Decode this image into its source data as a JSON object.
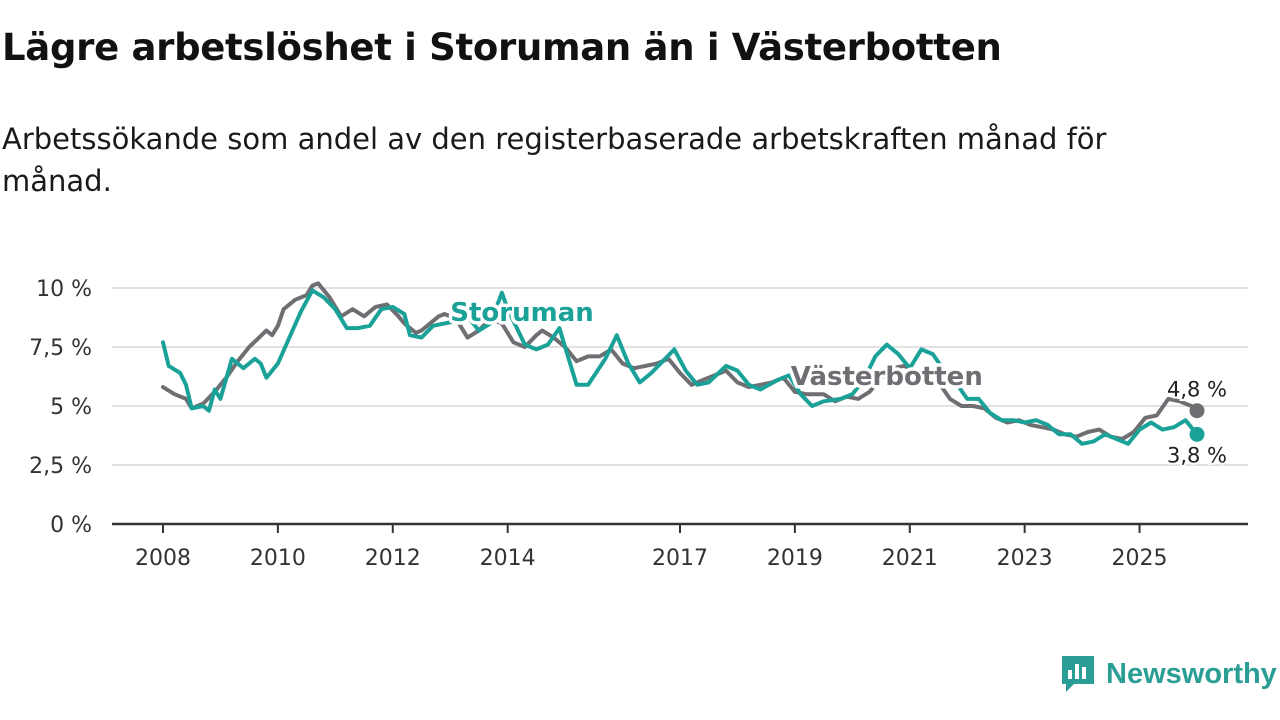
{
  "header": {
    "title": "Lägre arbetslöshet i Storuman än i Västerbotten",
    "subtitle": "Arbetssökande som andel av den registerbaserade arbetskraften månad för månad."
  },
  "brand": {
    "name": "Newsworthy",
    "icon": "newsworthy-logo-icon",
    "color": "#2a9d94"
  },
  "chart_data": {
    "type": "line",
    "title": "Lägre arbetslöshet i Storuman än i Västerbotten",
    "xlabel": "",
    "ylabel": "",
    "xlim": [
      2008.0,
      2026.3
    ],
    "ylim": [
      0,
      10
    ],
    "grid": true,
    "y_ticks": [
      0,
      2.5,
      5,
      7.5,
      10
    ],
    "y_tick_labels": [
      "0 %",
      "2,5 %",
      "5 %",
      "7,5 %",
      "10 %"
    ],
    "x_ticks": [
      2008,
      2010,
      2012,
      2014,
      2017,
      2019,
      2021,
      2023,
      2025
    ],
    "x_tick_labels": [
      "2008",
      "2010",
      "2012",
      "2014",
      "2017",
      "2019",
      "2021",
      "2023",
      "2025"
    ],
    "series": [
      {
        "name": "Västerbotten",
        "color": "#6f6e73",
        "end_label": "4,8 %",
        "points": [
          [
            2008.0,
            5.8
          ],
          [
            2008.2,
            5.5
          ],
          [
            2008.4,
            5.3
          ],
          [
            2008.5,
            4.9
          ],
          [
            2008.7,
            5.1
          ],
          [
            2008.9,
            5.6
          ],
          [
            2009.1,
            6.2
          ],
          [
            2009.3,
            6.9
          ],
          [
            2009.5,
            7.5
          ],
          [
            2009.8,
            8.2
          ],
          [
            2009.9,
            8.0
          ],
          [
            2010.0,
            8.4
          ],
          [
            2010.1,
            9.1
          ],
          [
            2010.3,
            9.5
          ],
          [
            2010.5,
            9.7
          ],
          [
            2010.6,
            10.1
          ],
          [
            2010.7,
            10.2
          ],
          [
            2010.9,
            9.6
          ],
          [
            2011.1,
            8.8
          ],
          [
            2011.3,
            9.1
          ],
          [
            2011.5,
            8.8
          ],
          [
            2011.7,
            9.2
          ],
          [
            2011.9,
            9.3
          ],
          [
            2012.1,
            8.8
          ],
          [
            2012.2,
            8.5
          ],
          [
            2012.4,
            8.1
          ],
          [
            2012.5,
            8.2
          ],
          [
            2012.7,
            8.6
          ],
          [
            2012.8,
            8.8
          ],
          [
            2012.9,
            8.9
          ],
          [
            2013.1,
            8.7
          ],
          [
            2013.3,
            7.9
          ],
          [
            2013.5,
            8.2
          ],
          [
            2013.7,
            8.7
          ],
          [
            2013.9,
            8.5
          ],
          [
            2014.1,
            7.7
          ],
          [
            2014.3,
            7.5
          ],
          [
            2014.5,
            8.0
          ],
          [
            2014.6,
            8.2
          ],
          [
            2014.8,
            7.9
          ],
          [
            2015.0,
            7.5
          ],
          [
            2015.2,
            6.9
          ],
          [
            2015.4,
            7.1
          ],
          [
            2015.6,
            7.1
          ],
          [
            2015.8,
            7.4
          ],
          [
            2016.0,
            6.8
          ],
          [
            2016.2,
            6.6
          ],
          [
            2016.4,
            6.7
          ],
          [
            2016.6,
            6.8
          ],
          [
            2016.8,
            7.0
          ],
          [
            2017.0,
            6.4
          ],
          [
            2017.2,
            5.9
          ],
          [
            2017.4,
            6.1
          ],
          [
            2017.6,
            6.3
          ],
          [
            2017.8,
            6.5
          ],
          [
            2018.0,
            6.0
          ],
          [
            2018.2,
            5.8
          ],
          [
            2018.4,
            5.9
          ],
          [
            2018.6,
            6.0
          ],
          [
            2018.8,
            6.2
          ],
          [
            2019.0,
            5.6
          ],
          [
            2019.2,
            5.5
          ],
          [
            2019.5,
            5.5
          ],
          [
            2019.7,
            5.2
          ],
          [
            2019.9,
            5.4
          ],
          [
            2020.1,
            5.3
          ],
          [
            2020.3,
            5.6
          ],
          [
            2020.5,
            6.2
          ],
          [
            2020.7,
            6.6
          ],
          [
            2020.9,
            6.7
          ],
          [
            2021.1,
            6.5
          ],
          [
            2021.3,
            6.3
          ],
          [
            2021.5,
            6.0
          ],
          [
            2021.7,
            5.3
          ],
          [
            2021.9,
            5.0
          ],
          [
            2022.1,
            5.0
          ],
          [
            2022.3,
            4.9
          ],
          [
            2022.5,
            4.5
          ],
          [
            2022.7,
            4.3
          ],
          [
            2022.9,
            4.4
          ],
          [
            2023.1,
            4.2
          ],
          [
            2023.3,
            4.1
          ],
          [
            2023.5,
            4.0
          ],
          [
            2023.7,
            3.8
          ],
          [
            2023.9,
            3.7
          ],
          [
            2024.1,
            3.9
          ],
          [
            2024.3,
            4.0
          ],
          [
            2024.5,
            3.7
          ],
          [
            2024.7,
            3.6
          ],
          [
            2024.9,
            3.9
          ],
          [
            2025.1,
            4.5
          ],
          [
            2025.3,
            4.6
          ],
          [
            2025.5,
            5.3
          ],
          [
            2025.7,
            5.2
          ],
          [
            2025.9,
            5.0
          ],
          [
            2026.0,
            4.8
          ]
        ]
      },
      {
        "name": "Storuman",
        "color": "#1aa299",
        "end_label": "3,8 %",
        "points": [
          [
            2008.0,
            7.7
          ],
          [
            2008.1,
            6.7
          ],
          [
            2008.3,
            6.4
          ],
          [
            2008.4,
            5.9
          ],
          [
            2008.5,
            4.9
          ],
          [
            2008.7,
            5.0
          ],
          [
            2008.8,
            4.8
          ],
          [
            2008.9,
            5.7
          ],
          [
            2009.0,
            5.3
          ],
          [
            2009.2,
            7.0
          ],
          [
            2009.4,
            6.6
          ],
          [
            2009.6,
            7.0
          ],
          [
            2009.7,
            6.8
          ],
          [
            2009.8,
            6.2
          ],
          [
            2010.0,
            6.8
          ],
          [
            2010.2,
            7.9
          ],
          [
            2010.4,
            9.0
          ],
          [
            2010.6,
            9.9
          ],
          [
            2010.8,
            9.6
          ],
          [
            2011.0,
            9.1
          ],
          [
            2011.2,
            8.3
          ],
          [
            2011.4,
            8.3
          ],
          [
            2011.6,
            8.4
          ],
          [
            2011.8,
            9.1
          ],
          [
            2012.0,
            9.2
          ],
          [
            2012.2,
            8.9
          ],
          [
            2012.3,
            8.0
          ],
          [
            2012.5,
            7.9
          ],
          [
            2012.7,
            8.4
          ],
          [
            2012.9,
            8.5
          ],
          [
            2013.1,
            8.6
          ],
          [
            2013.3,
            8.8
          ],
          [
            2013.5,
            8.2
          ],
          [
            2013.7,
            8.5
          ],
          [
            2013.9,
            9.8
          ],
          [
            2014.0,
            9.1
          ],
          [
            2014.3,
            7.6
          ],
          [
            2014.5,
            7.4
          ],
          [
            2014.7,
            7.6
          ],
          [
            2014.9,
            8.3
          ],
          [
            2015.0,
            7.5
          ],
          [
            2015.2,
            5.9
          ],
          [
            2015.4,
            5.9
          ],
          [
            2015.7,
            7.0
          ],
          [
            2015.9,
            8.0
          ],
          [
            2016.1,
            6.8
          ],
          [
            2016.3,
            6.0
          ],
          [
            2016.5,
            6.4
          ],
          [
            2016.7,
            6.9
          ],
          [
            2016.9,
            7.4
          ],
          [
            2017.1,
            6.5
          ],
          [
            2017.3,
            5.9
          ],
          [
            2017.5,
            6.0
          ],
          [
            2017.8,
            6.7
          ],
          [
            2018.0,
            6.5
          ],
          [
            2018.2,
            5.9
          ],
          [
            2018.4,
            5.7
          ],
          [
            2018.7,
            6.1
          ],
          [
            2018.9,
            6.3
          ],
          [
            2019.1,
            5.5
          ],
          [
            2019.3,
            5.0
          ],
          [
            2019.5,
            5.2
          ],
          [
            2019.8,
            5.3
          ],
          [
            2020.0,
            5.5
          ],
          [
            2020.2,
            6.1
          ],
          [
            2020.4,
            7.1
          ],
          [
            2020.6,
            7.6
          ],
          [
            2020.8,
            7.2
          ],
          [
            2021.0,
            6.6
          ],
          [
            2021.2,
            7.4
          ],
          [
            2021.4,
            7.2
          ],
          [
            2021.6,
            6.5
          ],
          [
            2021.8,
            6.0
          ],
          [
            2022.0,
            5.3
          ],
          [
            2022.2,
            5.3
          ],
          [
            2022.4,
            4.7
          ],
          [
            2022.6,
            4.4
          ],
          [
            2022.8,
            4.4
          ],
          [
            2023.0,
            4.3
          ],
          [
            2023.2,
            4.4
          ],
          [
            2023.4,
            4.2
          ],
          [
            2023.6,
            3.8
          ],
          [
            2023.8,
            3.8
          ],
          [
            2024.0,
            3.4
          ],
          [
            2024.2,
            3.5
          ],
          [
            2024.4,
            3.8
          ],
          [
            2024.6,
            3.6
          ],
          [
            2024.8,
            3.4
          ],
          [
            2025.0,
            4.0
          ],
          [
            2025.2,
            4.3
          ],
          [
            2025.4,
            4.0
          ],
          [
            2025.6,
            4.1
          ],
          [
            2025.8,
            4.4
          ],
          [
            2026.0,
            3.8
          ]
        ]
      }
    ],
    "annotations": [
      {
        "text": "Storuman",
        "series": "Storuman",
        "x": 2014.25,
        "y": 8.6
      },
      {
        "text": "Västerbotten",
        "series": "Västerbotten",
        "x": 2020.6,
        "y": 5.9
      }
    ]
  }
}
